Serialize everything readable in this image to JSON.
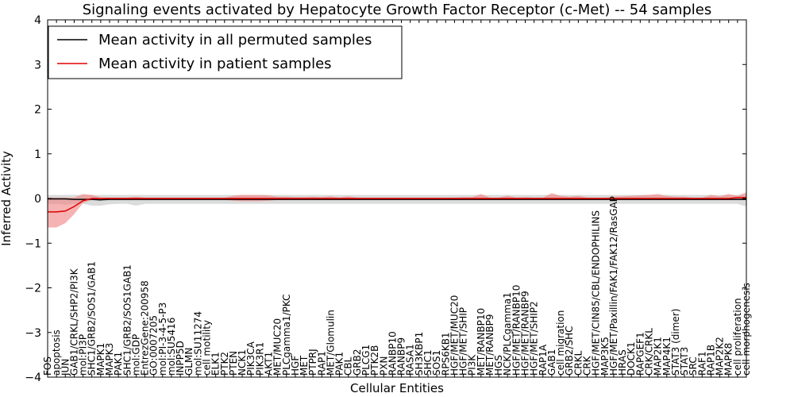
{
  "chart_data": {
    "type": "line",
    "title": "Signaling events activated by Hepatocyte Growth Factor Receptor (c-Met) -- 54 samples",
    "xlabel": "Cellular Entities",
    "ylabel": "Inferred Activity",
    "ylim": [
      -4,
      4
    ],
    "yticks": [
      -4,
      -3,
      -2,
      -1,
      0,
      1,
      2,
      3,
      4
    ],
    "legend_position": "top-left",
    "colors": {
      "permuted": "#000000",
      "permuted_band": "#c8c8c8",
      "patient": "#dd0000",
      "patient_band": "#f08080"
    },
    "categories": [
      "FOS",
      "apoptosis",
      "JUN",
      "GAB1/CRKL/SHP2/PI3K",
      "mol:PI3P",
      "SHC1/GRB2/SOS1/GAB1",
      "MAPK1",
      "MAPK3",
      "PAK1",
      "SHC1/GRB2/SOS1GAB1",
      "mol:GDP",
      "EntrezGene:200958",
      "GO:0007205",
      "mol:PI-3-4-5-P3",
      "mol:SU5416",
      "INPP5D",
      "GLMN",
      "mol:SU11274",
      "cell motility",
      "ELK1",
      "PTK2",
      "PTEN",
      "NCK1",
      "PIK3CA",
      "PIK3R1",
      "AKT1",
      "MET/MUC20",
      "PLCgamma1/PKC",
      "HGF",
      "MET",
      "PTPRJ",
      "RAP1",
      "MET/Glomulin",
      "PAK1",
      "CBL",
      "GRB2",
      "PLCG1",
      "PTK2B",
      "PXN",
      "RANBP10",
      "RANBP9",
      "RASA1",
      "SH3KBP1",
      "SHC1",
      "SOS1",
      "RPS6KB1",
      "HGF/MET/MUC20",
      "HGF/MET/SHIP",
      "PI3K",
      "MET/RANBP10",
      "MET/RANBP9",
      "HGS",
      "NCK/PLCgamma1",
      "HGF/MET/RANBP10",
      "HGF/MET/RANBP9",
      "HGF/MET/SHIP2",
      "RAP1A",
      "GAB1",
      "cell migration",
      "GRB2/SHC",
      "CRKL",
      "CRK",
      "HGF/MET/CIN85/CBL/ENDOPHILINS",
      "MAP3K5",
      "HGF/MET/Paxillin/FAK1/FAK12/RasGAP",
      "HRAS",
      "DOCK1",
      "RAPGEF1",
      "CRK/CRKL",
      "MAP2K1",
      "MAP4K1",
      "STAT3 (dimer)",
      "STAT3",
      "SRC",
      "RAF1",
      "RAP1B",
      "MAP2K2",
      "MAPK8",
      "cell proliferation",
      "cell morphogenesis"
    ],
    "series": [
      {
        "name": "Mean activity in all permuted samples",
        "values": [
          -0.01,
          -0.01,
          -0.01,
          -0.02,
          -0.02,
          -0.02,
          -0.03,
          -0.02,
          -0.02,
          -0.02,
          -0.02,
          -0.02,
          -0.02,
          -0.02,
          -0.02,
          -0.02,
          -0.02,
          -0.02,
          -0.02,
          -0.02,
          -0.02,
          -0.02,
          -0.02,
          -0.02,
          -0.02,
          -0.02,
          -0.02,
          -0.02,
          -0.02,
          -0.02,
          -0.02,
          -0.02,
          -0.02,
          -0.02,
          -0.02,
          -0.02,
          -0.02,
          -0.02,
          -0.02,
          -0.02,
          -0.02,
          -0.02,
          -0.02,
          -0.02,
          -0.02,
          -0.02,
          -0.02,
          -0.02,
          -0.02,
          -0.02,
          -0.02,
          -0.02,
          -0.02,
          -0.02,
          -0.02,
          -0.02,
          -0.02,
          -0.02,
          -0.02,
          -0.02,
          -0.02,
          -0.02,
          -0.02,
          -0.02,
          -0.02,
          -0.02,
          -0.02,
          -0.02,
          -0.02,
          -0.02,
          -0.02,
          -0.02,
          -0.02,
          -0.02,
          -0.02,
          -0.02,
          -0.02,
          -0.02,
          -0.02,
          -0.02
        ],
        "lower": [
          -0.12,
          -0.12,
          -0.14,
          -0.12,
          -0.12,
          -0.16,
          -0.16,
          -0.13,
          -0.12,
          -0.12,
          -0.16,
          -0.12,
          -0.12,
          -0.12,
          -0.12,
          -0.12,
          -0.12,
          -0.12,
          -0.12,
          -0.12,
          -0.12,
          -0.12,
          -0.12,
          -0.12,
          -0.12,
          -0.12,
          -0.12,
          -0.12,
          -0.12,
          -0.12,
          -0.12,
          -0.12,
          -0.12,
          -0.12,
          -0.12,
          -0.12,
          -0.12,
          -0.12,
          -0.12,
          -0.12,
          -0.12,
          -0.12,
          -0.12,
          -0.12,
          -0.12,
          -0.12,
          -0.12,
          -0.12,
          -0.12,
          -0.12,
          -0.12,
          -0.12,
          -0.12,
          -0.12,
          -0.12,
          -0.12,
          -0.12,
          -0.12,
          -0.12,
          -0.12,
          -0.12,
          -0.12,
          -0.12,
          -0.12,
          -0.12,
          -0.12,
          -0.12,
          -0.12,
          -0.12,
          -0.12,
          -0.12,
          -0.12,
          -0.12,
          -0.12,
          -0.12,
          -0.12,
          -0.12,
          -0.12,
          -0.12,
          -0.18
        ],
        "upper": [
          0.08,
          0.08,
          0.08,
          0.08,
          0.08,
          0.08,
          0.08,
          0.08,
          0.08,
          0.08,
          0.08,
          0.08,
          0.08,
          0.08,
          0.08,
          0.08,
          0.08,
          0.08,
          0.08,
          0.08,
          0.08,
          0.08,
          0.08,
          0.08,
          0.08,
          0.08,
          0.08,
          0.08,
          0.08,
          0.08,
          0.08,
          0.08,
          0.08,
          0.08,
          0.08,
          0.08,
          0.08,
          0.08,
          0.08,
          0.08,
          0.08,
          0.08,
          0.08,
          0.08,
          0.08,
          0.08,
          0.08,
          0.08,
          0.08,
          0.08,
          0.08,
          0.08,
          0.08,
          0.08,
          0.08,
          0.08,
          0.08,
          0.08,
          0.08,
          0.08,
          0.08,
          0.08,
          0.08,
          0.08,
          0.08,
          0.08,
          0.08,
          0.08,
          0.08,
          0.08,
          0.08,
          0.08,
          0.08,
          0.08,
          0.08,
          0.08,
          0.08,
          0.08,
          0.08,
          0.08
        ]
      },
      {
        "name": "Mean activity in patient samples",
        "values": [
          -0.3,
          -0.3,
          -0.28,
          -0.18,
          -0.05,
          0.0,
          0.0,
          0.0,
          0.0,
          0.0,
          0.0,
          0.0,
          0.0,
          0.0,
          0.0,
          0.0,
          0.0,
          0.0,
          0.0,
          0.0,
          0.0,
          0.0,
          0.0,
          0.0,
          0.0,
          0.0,
          0.0,
          0.0,
          0.0,
          0.0,
          0.0,
          0.0,
          0.0,
          0.0,
          0.0,
          0.0,
          0.0,
          0.0,
          0.0,
          0.0,
          0.0,
          0.0,
          0.0,
          0.0,
          0.0,
          0.0,
          0.0,
          0.0,
          0.0,
          0.0,
          0.0,
          0.0,
          0.0,
          0.0,
          0.0,
          0.0,
          0.0,
          0.0,
          0.0,
          0.0,
          0.0,
          0.0,
          0.0,
          0.0,
          0.0,
          0.0,
          0.0,
          0.0,
          0.0,
          0.0,
          0.0,
          0.0,
          0.0,
          0.0,
          0.0,
          0.0,
          0.0,
          0.0,
          0.02,
          0.02
        ],
        "lower": [
          -0.65,
          -0.65,
          -0.55,
          -0.35,
          -0.1,
          -0.03,
          -0.03,
          -0.03,
          -0.03,
          -0.03,
          -0.03,
          -0.03,
          -0.03,
          -0.03,
          -0.03,
          -0.03,
          -0.03,
          -0.03,
          -0.03,
          -0.03,
          -0.03,
          -0.05,
          -0.06,
          -0.06,
          -0.06,
          -0.05,
          -0.03,
          -0.03,
          -0.03,
          -0.03,
          -0.03,
          -0.03,
          -0.03,
          -0.03,
          -0.03,
          -0.03,
          -0.03,
          -0.03,
          -0.03,
          -0.03,
          -0.03,
          -0.03,
          -0.03,
          -0.03,
          -0.03,
          -0.03,
          -0.03,
          -0.03,
          -0.03,
          -0.03,
          -0.03,
          -0.03,
          -0.03,
          -0.03,
          -0.03,
          -0.03,
          -0.03,
          -0.03,
          -0.03,
          -0.03,
          -0.03,
          -0.03,
          -0.03,
          -0.03,
          -0.03,
          -0.03,
          -0.03,
          -0.03,
          -0.03,
          -0.03,
          -0.03,
          -0.03,
          -0.03,
          -0.03,
          -0.03,
          -0.03,
          -0.03,
          -0.03,
          -0.03,
          -0.03
        ],
        "upper": [
          0.02,
          0.02,
          0.02,
          0.02,
          0.1,
          0.08,
          0.02,
          0.02,
          0.02,
          0.02,
          0.04,
          0.02,
          0.02,
          0.02,
          0.02,
          0.02,
          0.02,
          0.02,
          0.02,
          0.02,
          0.02,
          0.06,
          0.08,
          0.08,
          0.08,
          0.07,
          0.04,
          0.04,
          0.03,
          0.03,
          0.04,
          0.03,
          0.05,
          0.02,
          0.05,
          0.02,
          0.02,
          0.02,
          0.02,
          0.02,
          0.02,
          0.02,
          0.02,
          0.02,
          0.02,
          0.02,
          0.02,
          0.03,
          0.03,
          0.1,
          0.02,
          0.02,
          0.06,
          0.02,
          0.03,
          0.02,
          0.02,
          0.12,
          0.06,
          0.04,
          0.06,
          0.02,
          0.02,
          0.02,
          0.04,
          0.05,
          0.06,
          0.07,
          0.08,
          0.1,
          0.06,
          0.04,
          0.04,
          0.02,
          0.02,
          0.08,
          0.05,
          0.1,
          0.06,
          0.14
        ]
      }
    ]
  }
}
